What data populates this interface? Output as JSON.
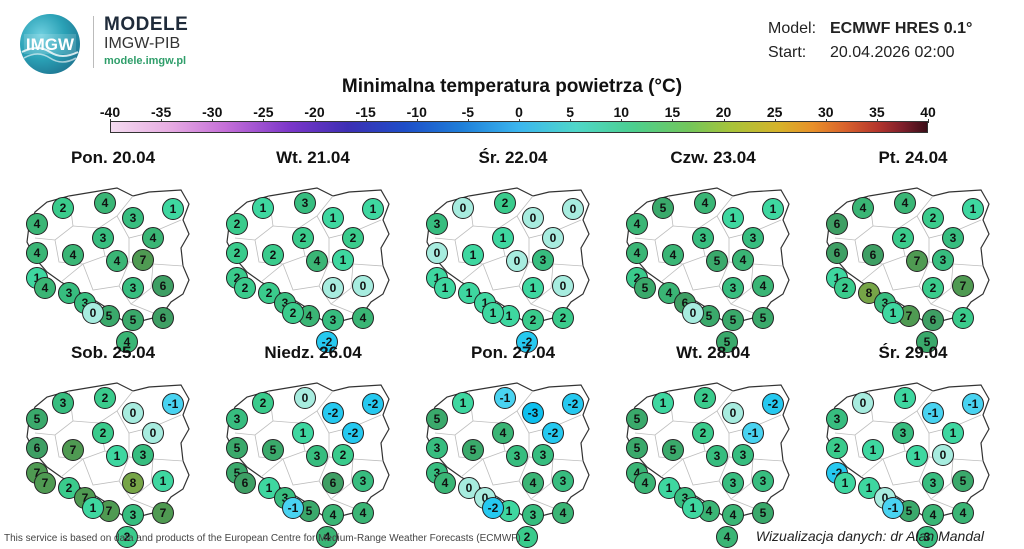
{
  "header": {
    "logo_text": "IMGW",
    "brand_title": "MODELE",
    "brand_subtitle": "IMGW-PIB",
    "brand_url": "modele.imgw.pl",
    "model_label": "Model:",
    "model_value": "ECMWF HRES 0.1°",
    "start_label": "Start:",
    "start_value": "20.04.2026 02:00",
    "title": "Minimalna temperatura powietrza (°C)"
  },
  "colorbar": {
    "ticks": [
      "-40",
      "-35",
      "-30",
      "-25",
      "-20",
      "-15",
      "-10",
      "-5",
      "0",
      "5",
      "10",
      "15",
      "20",
      "25",
      "30",
      "35",
      "40"
    ],
    "colors": {
      "neg3": "#0fc0ee",
      "neg2": "#26c9f0",
      "neg1": "#49d3f1",
      "v0": "#a7ecdf",
      "v1": "#3ed7a0",
      "v2": "#3acb8c",
      "v3": "#37bd7f",
      "v4": "#3ab575",
      "v5": "#3aa96b",
      "v6": "#3e9f64",
      "v7": "#4f9a52",
      "v8": "#76a547"
    }
  },
  "days": [
    {
      "label": "Pon. 20.04",
      "values": [
        "4",
        "2",
        "4",
        "3",
        "1",
        "4",
        "3",
        "4",
        "1",
        "4",
        "4",
        "7",
        "4",
        "3",
        "6",
        "3",
        "3",
        "6",
        "5",
        "5",
        "4",
        "0"
      ]
    },
    {
      "label": "Wt. 21.04",
      "values": [
        "2",
        "1",
        "3",
        "1",
        "1",
        "2",
        "2",
        "2",
        "2",
        "2",
        "4",
        "1",
        "2",
        "0",
        "0",
        "2",
        "3",
        "4",
        "4",
        "3",
        "-2",
        "2"
      ]
    },
    {
      "label": "Śr. 22.04",
      "values": [
        "3",
        "0",
        "2",
        "0",
        "0",
        "0",
        "1",
        "0",
        "1",
        "1",
        "0",
        "3",
        "1",
        "1",
        "0",
        "1",
        "1",
        "2",
        "1",
        "2",
        "-2",
        "1"
      ]
    },
    {
      "label": "Czw. 23.04",
      "values": [
        "4",
        "5",
        "4",
        "1",
        "1",
        "4",
        "3",
        "3",
        "2",
        "4",
        "5",
        "4",
        "5",
        "3",
        "4",
        "4",
        "6",
        "5",
        "5",
        "5",
        "5",
        "0"
      ]
    },
    {
      "label": "Pt. 24.04",
      "values": [
        "6",
        "4",
        "4",
        "2",
        "1",
        "6",
        "2",
        "3",
        "1",
        "6",
        "7",
        "3",
        "2",
        "2",
        "7",
        "8",
        "3",
        "2",
        "7",
        "6",
        "5",
        "1"
      ]
    },
    {
      "label": "Sob. 25.04",
      "values": [
        "5",
        "3",
        "2",
        "0",
        "-1",
        "6",
        "2",
        "0",
        "7",
        "7",
        "1",
        "3",
        "7",
        "8",
        "1",
        "2",
        "7",
        "7",
        "7",
        "3",
        "2",
        "1"
      ]
    },
    {
      "label": "Niedz. 26.04",
      "values": [
        "3",
        "2",
        "0",
        "-2",
        "-2",
        "5",
        "1",
        "-2",
        "5",
        "5",
        "3",
        "2",
        "6",
        "6",
        "3",
        "1",
        "3",
        "4",
        "5",
        "4",
        "4",
        "-1"
      ]
    },
    {
      "label": "Pon. 27.04",
      "values": [
        "5",
        "1",
        "-1",
        "-3",
        "-2",
        "3",
        "4",
        "-2",
        "3",
        "5",
        "3",
        "3",
        "4",
        "4",
        "3",
        "0",
        "0",
        "4",
        "1",
        "3",
        "2",
        "-2"
      ]
    },
    {
      "label": "Wt. 28.04",
      "values": [
        "5",
        "1",
        "2",
        "0",
        "-2",
        "5",
        "2",
        "-1",
        "4",
        "5",
        "3",
        "3",
        "4",
        "3",
        "3",
        "1",
        "3",
        "5",
        "4",
        "4",
        "4",
        "1"
      ]
    },
    {
      "label": "Śr. 29.04",
      "values": [
        "3",
        "0",
        "1",
        "-1",
        "-1",
        "2",
        "3",
        "1",
        "-2",
        "1",
        "1",
        "0",
        "1",
        "3",
        "5",
        "1",
        "0",
        "4",
        "5",
        "4",
        "3",
        "-1"
      ]
    }
  ],
  "footer": {
    "credit": "This service is based on data and products of the European Centre for Medium-Range Weather Forecasts (ECMWF)",
    "author": "Wizualizacja danych: dr Alan Mandal"
  }
}
